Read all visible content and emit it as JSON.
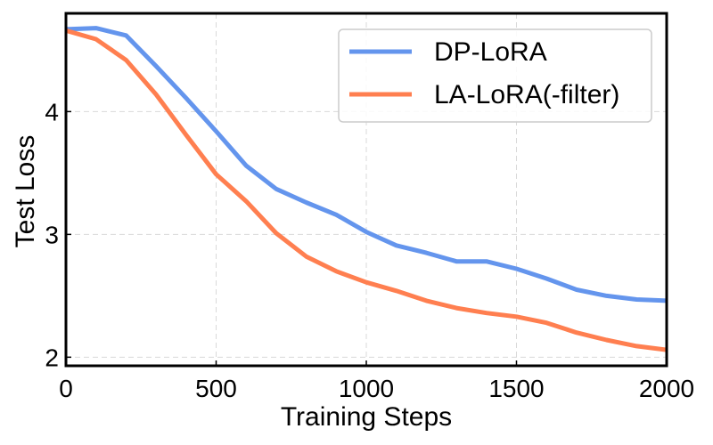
{
  "chart_data": {
    "type": "line",
    "title": "",
    "xlabel": "Training Steps",
    "ylabel": "Test Loss",
    "xlim": [
      0,
      2000
    ],
    "ylim": [
      1.93,
      4.8
    ],
    "xticks": [
      0,
      500,
      1000,
      1500,
      2000
    ],
    "xtick_labels": [
      "0",
      "500",
      "1000",
      "1500",
      "2000"
    ],
    "yticks": [
      2,
      3,
      4
    ],
    "ytick_labels": [
      "2",
      "3",
      "4"
    ],
    "grid": true,
    "legend_position": "top-right",
    "series": [
      {
        "name": "DP-LoRA",
        "color": "#6495ED",
        "x": [
          0,
          100,
          200,
          300,
          400,
          500,
          600,
          700,
          800,
          900,
          1000,
          1100,
          1200,
          1300,
          1400,
          1500,
          1600,
          1700,
          1800,
          1900,
          2000
        ],
        "y": [
          4.67,
          4.68,
          4.62,
          4.37,
          4.11,
          3.84,
          3.56,
          3.37,
          3.26,
          3.16,
          3.02,
          2.91,
          2.85,
          2.78,
          2.78,
          2.72,
          2.64,
          2.55,
          2.5,
          2.47,
          2.46
        ]
      },
      {
        "name": "LA-LoRA(-filter)",
        "color": "#FF7F50",
        "x": [
          0,
          100,
          200,
          300,
          400,
          500,
          600,
          700,
          800,
          900,
          1000,
          1100,
          1200,
          1300,
          1400,
          1500,
          1600,
          1700,
          1800,
          1900,
          2000
        ],
        "y": [
          4.66,
          4.59,
          4.42,
          4.14,
          3.81,
          3.49,
          3.27,
          3.01,
          2.82,
          2.7,
          2.61,
          2.54,
          2.46,
          2.4,
          2.36,
          2.33,
          2.28,
          2.2,
          2.14,
          2.09,
          2.06
        ]
      }
    ]
  }
}
